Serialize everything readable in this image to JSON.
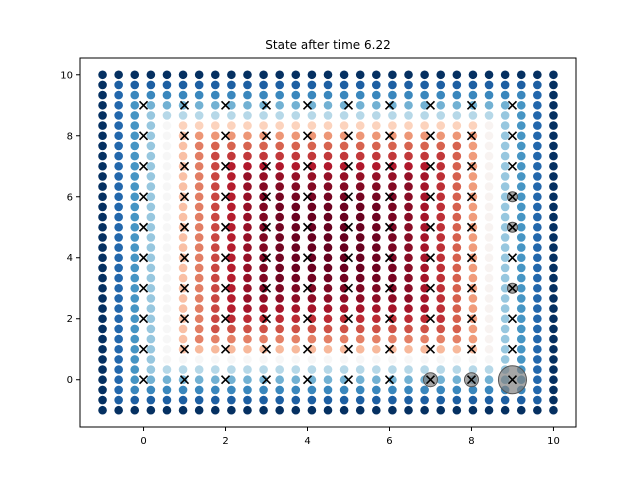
{
  "chart_data": {
    "type": "scatter",
    "title": "State after time 6.22",
    "xlabel": "",
    "ylabel": "",
    "xlim": [
      -1.55,
      10.55
    ],
    "ylim": [
      -1.55,
      10.55
    ],
    "x_ticks": [
      0,
      2,
      4,
      6,
      8,
      10
    ],
    "y_ticks": [
      0,
      2,
      4,
      6,
      8,
      10
    ],
    "x_tick_labels": [
      "0",
      "2",
      "4",
      "6",
      "8",
      "10"
    ],
    "y_tick_labels": [
      "0",
      "2",
      "4",
      "6",
      "8",
      "10"
    ],
    "grid": false,
    "field": {
      "description": "Dense grid of colored dots (RdBu colormap, red = positive, blue = negative)",
      "x_start": -1,
      "x_end": 10,
      "x_step": 0.4,
      "y_start": -1,
      "y_end": 10,
      "y_step": 0.333,
      "colormap": "RdBu_r",
      "value_range": [
        -1,
        1
      ]
    },
    "crosses": {
      "marker": "x",
      "color": "#000000",
      "x": [
        0,
        1,
        2,
        3,
        4,
        5,
        6,
        7,
        8,
        9
      ],
      "y": [
        0,
        1,
        2,
        3,
        4,
        5,
        6,
        7,
        8,
        9
      ]
    },
    "highlights": [
      {
        "x": 7,
        "y": 0,
        "size": "small"
      },
      {
        "x": 8,
        "y": 0,
        "size": "small"
      },
      {
        "x": 9,
        "y": 0,
        "size": "large"
      },
      {
        "x": 9,
        "y": 6,
        "size": "tiny"
      },
      {
        "x": 9,
        "y": 5,
        "size": "tiny"
      },
      {
        "x": 9,
        "y": 3,
        "size": "tiny"
      }
    ],
    "highlight_color": "#808080"
  }
}
